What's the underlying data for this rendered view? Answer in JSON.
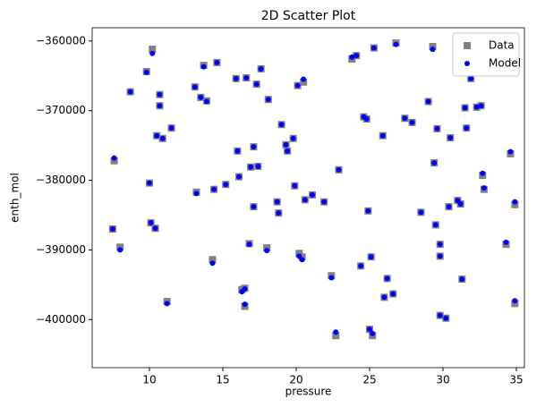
{
  "chart_data": {
    "type": "scatter",
    "title": "2D Scatter Plot",
    "x_label": "pressure",
    "y_label": "enth_mol",
    "xlim": [
      6.1,
      35.55
    ],
    "ylim": [
      -406900,
      -358100
    ],
    "xticks": [
      10,
      15,
      20,
      25,
      30,
      35
    ],
    "yticks": [
      {
        "value": -400000,
        "label": "−400000"
      },
      {
        "value": -390000,
        "label": "−390000"
      },
      {
        "value": -380000,
        "label": "−380000"
      },
      {
        "value": -370000,
        "label": "−370000"
      },
      {
        "value": -360000,
        "label": "−360000"
      }
    ],
    "legend": "upper right",
    "x": [
      7.5,
      7.6,
      8.0,
      8.7,
      9.8,
      10.0,
      10.1,
      10.2,
      10.4,
      10.5,
      10.7,
      10.7,
      10.9,
      11.2,
      11.5,
      13.1,
      13.2,
      13.5,
      13.7,
      13.9,
      14.3,
      14.4,
      14.6,
      15.2,
      15.9,
      16.0,
      16.1,
      16.3,
      16.5,
      16.5,
      16.6,
      16.8,
      16.9,
      17.1,
      17.1,
      17.3,
      17.4,
      17.6,
      18.0,
      18.1,
      18.7,
      18.8,
      19.0,
      19.3,
      19.4,
      19.8,
      19.9,
      20.1,
      20.2,
      20.4,
      20.5,
      20.6,
      21.1,
      21.9,
      22.9,
      22.4,
      22.7,
      23.8,
      24.1,
      24.4,
      24.6,
      24.8,
      24.9,
      25.0,
      25.1,
      25.2,
      25.3,
      25.9,
      26.0,
      26.2,
      26.6,
      26.8,
      27.4,
      27.9,
      28.5,
      29.0,
      29.3,
      29.4,
      29.5,
      29.6,
      29.8,
      29.8,
      29.8,
      30.2,
      30.4,
      30.5,
      31.0,
      31.2,
      31.3,
      31.5,
      31.6,
      31.9,
      32.3,
      32.6,
      32.7,
      32.8,
      34.3,
      34.6,
      34.9,
      34.9
    ],
    "series": [
      {
        "name": "Data",
        "color": "#808080",
        "marker": "square",
        "values": [
          -387000,
          -377200,
          -389600,
          -367300,
          -364400,
          -380400,
          -386100,
          -361200,
          -386900,
          -373600,
          -367700,
          -369300,
          -374000,
          -397400,
          -372500,
          -366600,
          -381700,
          -368100,
          -363500,
          -368600,
          -391400,
          -381300,
          -363100,
          -380600,
          -365400,
          -375800,
          -379500,
          -395700,
          -395500,
          -398100,
          -365300,
          -389100,
          -378100,
          -375200,
          -383800,
          -366200,
          -378000,
          -364000,
          -389700,
          -368400,
          -383100,
          -384700,
          -372000,
          -374900,
          -375800,
          -374000,
          -380800,
          -366400,
          -390500,
          -391000,
          -365900,
          -382800,
          -382100,
          -383100,
          -378500,
          -393700,
          -402300,
          -362600,
          -362100,
          -392300,
          -370900,
          -371200,
          -384400,
          -401400,
          -391000,
          -402300,
          -361000,
          -373600,
          -396800,
          -394100,
          -396300,
          -360300,
          -371100,
          -371700,
          -384600,
          -368700,
          -360800,
          -377500,
          -386400,
          -372600,
          -390900,
          -389200,
          -399400,
          -399800,
          -383800,
          -373900,
          -382900,
          -383400,
          -394200,
          -369600,
          -372500,
          -365400,
          -369500,
          -369300,
          -379300,
          -381300,
          -389200,
          -376200,
          -383500,
          -397700
        ]
      },
      {
        "name": "Model",
        "color": "#0000ff",
        "marker": "circle",
        "values": [
          -387000,
          -376800,
          -390000,
          -367300,
          -364500,
          -380400,
          -386100,
          -361800,
          -386900,
          -373600,
          -367700,
          -369300,
          -374000,
          -397700,
          -372500,
          -366600,
          -381900,
          -368100,
          -363700,
          -368700,
          -391900,
          -381300,
          -363100,
          -380600,
          -365400,
          -375800,
          -379500,
          -396000,
          -395600,
          -397800,
          -365300,
          -389200,
          -378100,
          -375200,
          -383800,
          -366200,
          -378000,
          -364000,
          -390100,
          -368400,
          -383100,
          -384700,
          -372000,
          -374900,
          -375800,
          -374000,
          -380800,
          -366400,
          -390900,
          -391400,
          -365500,
          -382800,
          -382100,
          -383100,
          -378500,
          -394000,
          -401800,
          -362300,
          -362100,
          -392300,
          -370900,
          -371200,
          -384400,
          -401400,
          -391000,
          -402000,
          -361000,
          -373600,
          -396800,
          -394100,
          -396300,
          -360500,
          -371100,
          -371700,
          -384600,
          -368700,
          -361200,
          -377500,
          -386400,
          -372600,
          -390900,
          -389200,
          -399400,
          -399800,
          -383800,
          -373900,
          -382900,
          -383400,
          -394200,
          -369600,
          -372500,
          -365400,
          -369500,
          -369300,
          -379000,
          -381100,
          -388900,
          -375900,
          -383100,
          -397300
        ]
      }
    ]
  }
}
